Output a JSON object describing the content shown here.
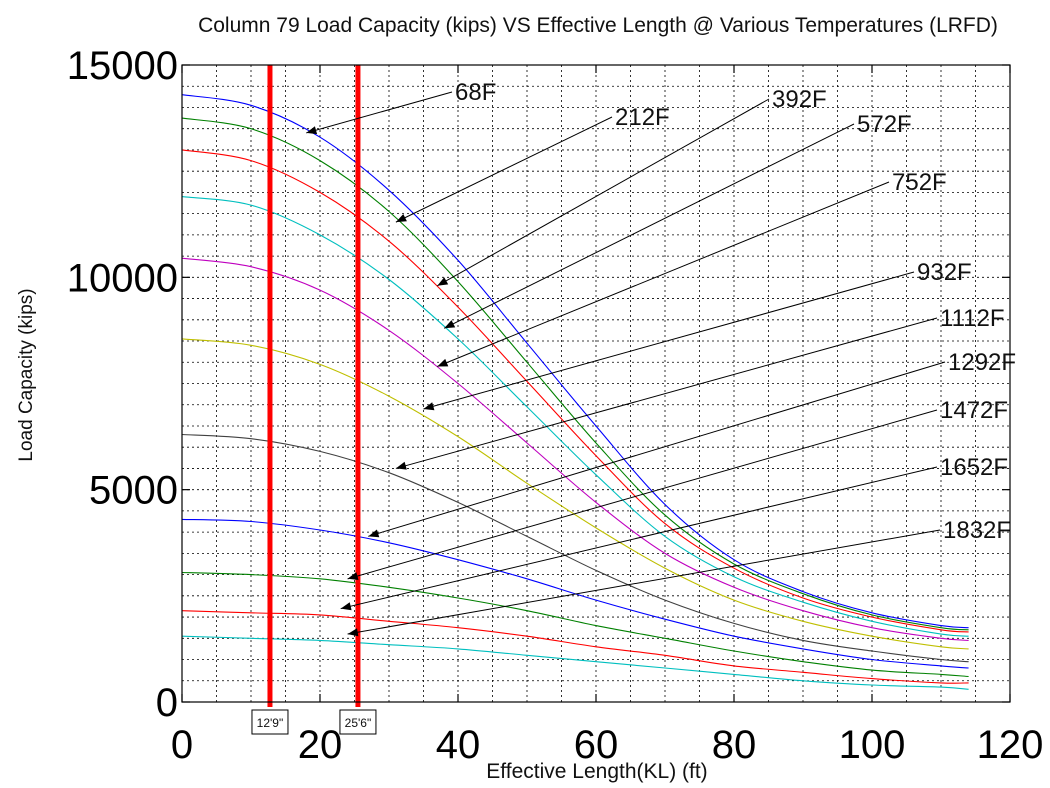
{
  "chart_data": {
    "type": "line",
    "title": "Column 79 Load Capacity (kips) VS Effective Length @ Various Temperatures (LRFD)",
    "xlabel": "Effective Length(KL) (ft)",
    "ylabel": "Load Capacity (kips)",
    "xlim": [
      0,
      120
    ],
    "ylim": [
      0,
      15000
    ],
    "x_ticks": [
      0,
      20,
      40,
      60,
      80,
      100,
      120
    ],
    "y_ticks": [
      0,
      5000,
      10000,
      15000
    ],
    "x_tick_labels": [
      "0",
      "20",
      "40",
      "60",
      "80",
      "100",
      "120"
    ],
    "y_tick_labels": [
      "0",
      "5000",
      "10000",
      "15000"
    ],
    "grid": true,
    "grid_style": "dotted, minor step 5 ft x 500 kips",
    "legend": "none (leader-line annotations)",
    "x": [
      0,
      10,
      20,
      30,
      40,
      50,
      60,
      70,
      80,
      90,
      100,
      110,
      114
    ],
    "series": [
      {
        "name": "68F",
        "color": "#0000ff",
        "values": [
          14300,
          14050,
          13300,
          12050,
          10400,
          8450,
          6500,
          4650,
          3350,
          2600,
          2100,
          1800,
          1750
        ]
      },
      {
        "name": "212F",
        "color": "#008000",
        "values": [
          13750,
          13500,
          12750,
          11550,
          9900,
          8000,
          6100,
          4400,
          3250,
          2550,
          2050,
          1750,
          1700
        ]
      },
      {
        "name": "392F",
        "color": "#ff0000",
        "values": [
          13000,
          12750,
          12000,
          10850,
          9300,
          7550,
          5800,
          4200,
          3150,
          2450,
          2000,
          1700,
          1650
        ]
      },
      {
        "name": "572F",
        "color": "#00bfbf",
        "values": [
          11900,
          11700,
          11000,
          9950,
          8550,
          6950,
          5350,
          3900,
          2950,
          2350,
          1900,
          1600,
          1550
        ]
      },
      {
        "name": "752F",
        "color": "#bf00bf",
        "values": [
          10450,
          10250,
          9700,
          8750,
          7500,
          6100,
          4700,
          3500,
          2700,
          2150,
          1750,
          1500,
          1450
        ]
      },
      {
        "name": "932F",
        "color": "#bfbf00",
        "values": [
          8550,
          8400,
          7950,
          7200,
          6250,
          5150,
          4100,
          3150,
          2400,
          1900,
          1550,
          1300,
          1250
        ]
      },
      {
        "name": "1112F",
        "color": "#404040",
        "values": [
          6300,
          6200,
          5900,
          5400,
          4700,
          3900,
          3100,
          2400,
          1850,
          1450,
          1200,
          1000,
          950
        ]
      },
      {
        "name": "1292F",
        "color": "#0000ff",
        "values": [
          4300,
          4250,
          4050,
          3750,
          3350,
          2900,
          2400,
          1950,
          1550,
          1250,
          1000,
          850,
          800
        ]
      },
      {
        "name": "1472F",
        "color": "#008000",
        "values": [
          3050,
          3000,
          2900,
          2700,
          2450,
          2150,
          1800,
          1500,
          1200,
          950,
          750,
          650,
          600
        ]
      },
      {
        "name": "1652F",
        "color": "#ff0000",
        "values": [
          2150,
          2100,
          2050,
          1900,
          1750,
          1550,
          1300,
          1100,
          850,
          700,
          550,
          450,
          450
        ]
      },
      {
        "name": "1832F",
        "color": "#00bfbf",
        "values": [
          1550,
          1500,
          1450,
          1350,
          1250,
          1100,
          950,
          800,
          650,
          500,
          400,
          350,
          300
        ]
      }
    ],
    "markers": [
      {
        "x": 12.75,
        "label": "12'9\"",
        "color": "#ff0000"
      },
      {
        "x": 25.5,
        "label": "25'6\"",
        "color": "#ff0000"
      }
    ],
    "annotations": [
      {
        "text": "68F",
        "tip_x": 18,
        "tip_y": 13400
      },
      {
        "text": "212F",
        "tip_x": 31,
        "tip_y": 11300
      },
      {
        "text": "392F",
        "tip_x": 37,
        "tip_y": 9800
      },
      {
        "text": "572F",
        "tip_x": 38,
        "tip_y": 8800
      },
      {
        "text": "752F",
        "tip_x": 37,
        "tip_y": 7900
      },
      {
        "text": "932F",
        "tip_x": 35,
        "tip_y": 6900
      },
      {
        "text": "1112F",
        "tip_x": 31,
        "tip_y": 5500
      },
      {
        "text": "1292F",
        "tip_x": 27,
        "tip_y": 3900
      },
      {
        "text": "1472F",
        "tip_x": 24,
        "tip_y": 2900
      },
      {
        "text": "1652F",
        "tip_x": 23,
        "tip_y": 2200
      },
      {
        "text": "1832F",
        "tip_x": 24,
        "tip_y": 1600
      }
    ]
  }
}
